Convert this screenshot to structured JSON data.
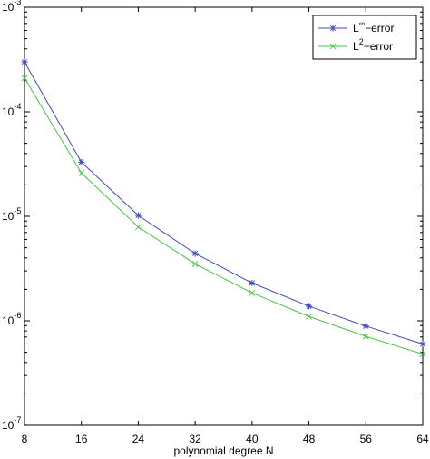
{
  "chart_data": {
    "type": "line",
    "title": "",
    "xlabel": "polynomial degree N",
    "ylabel": "",
    "x": [
      8,
      16,
      24,
      32,
      40,
      48,
      56,
      64
    ],
    "xlim": [
      8,
      64
    ],
    "ylim": [
      1e-07,
      0.001
    ],
    "yscale": "log",
    "grid": false,
    "legend": "top-right",
    "x_ticks": [
      "8",
      "16",
      "24",
      "32",
      "40",
      "48",
      "56",
      "64"
    ],
    "y_ticks": [
      {
        "base": "10",
        "exp": "-7",
        "value": 1e-07
      },
      {
        "base": "10",
        "exp": "-6",
        "value": 1e-06
      },
      {
        "base": "10",
        "exp": "-5",
        "value": 1e-05
      },
      {
        "base": "10",
        "exp": "-4",
        "value": 0.0001
      },
      {
        "base": "10",
        "exp": "-3",
        "value": 0.001
      }
    ],
    "series": [
      {
        "name_base": "L",
        "name_sup": "∞",
        "name_rest": "−error",
        "color": "#3f48b6",
        "marker": "asterisk",
        "values": [
          0.0003,
          3.3e-05,
          1.02e-05,
          4.4e-06,
          2.3e-06,
          1.38e-06,
          8.9e-07,
          6e-07
        ]
      },
      {
        "name_base": "L",
        "name_sup": "2",
        "name_rest": "−error",
        "color": "#4cc24c",
        "marker": "x",
        "values": [
          0.00021,
          2.6e-05,
          7.9e-06,
          3.5e-06,
          1.85e-06,
          1.1e-06,
          7.1e-07,
          4.8e-07
        ]
      }
    ]
  }
}
